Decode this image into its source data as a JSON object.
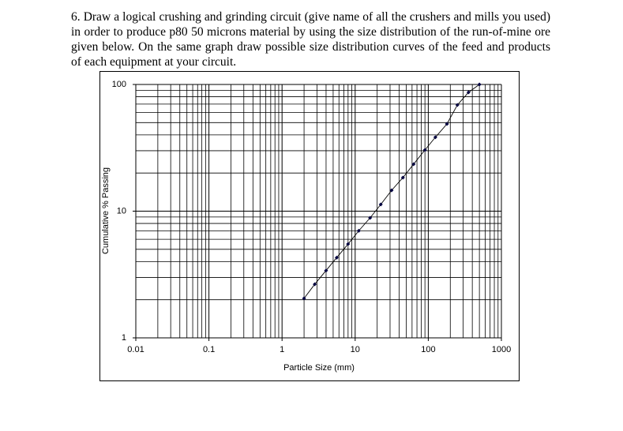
{
  "question": "6. Draw a logical crushing and grinding circuit (give name of all the crushers and mills you used) in order to produce p80 50 microns material by using the size distribution of the run-of-mine ore given below. On the same graph draw possible size distribution curves of the feed and products of each equipment at your circuit.",
  "chart_data": {
    "type": "line",
    "x_label": "Particle Size (mm)",
    "y_label": "Cumulative % Passing",
    "x": [
      2,
      2.8,
      4,
      5.6,
      8,
      11.2,
      16,
      22.4,
      31.5,
      45,
      63,
      90,
      125,
      180,
      250,
      355,
      500
    ],
    "values": [
      2.05,
      2.65,
      3.4,
      4.3,
      5.5,
      7,
      8.85,
      11.3,
      14.6,
      18.4,
      23.5,
      30.4,
      38.3,
      48.8,
      68.9,
      86.7,
      100
    ],
    "color": "#000000",
    "marker_color": "#000040",
    "xlog": true,
    "ylog": true,
    "grid": true,
    "xlim": [
      0.01,
      1000
    ],
    "ylim": [
      1,
      100
    ],
    "xticks": [
      0.01,
      0.1,
      1,
      10,
      100,
      1000
    ],
    "yticks": [
      1,
      10,
      100
    ],
    "xminorticks": [
      0.02,
      0.03,
      0.04,
      0.05,
      0.06,
      0.07,
      0.08,
      0.09,
      0.2,
      0.3,
      0.4,
      0.5,
      0.6,
      0.7,
      0.8,
      0.9,
      2,
      3,
      4,
      5,
      6,
      7,
      8,
      9,
      20,
      30,
      40,
      50,
      60,
      70,
      80,
      90,
      200,
      300,
      400,
      500,
      600,
      700,
      800,
      900
    ],
    "yminorticks": [
      2,
      3,
      4,
      5,
      6,
      7,
      8,
      9,
      20,
      30,
      40,
      50,
      60,
      70,
      80,
      90
    ]
  }
}
